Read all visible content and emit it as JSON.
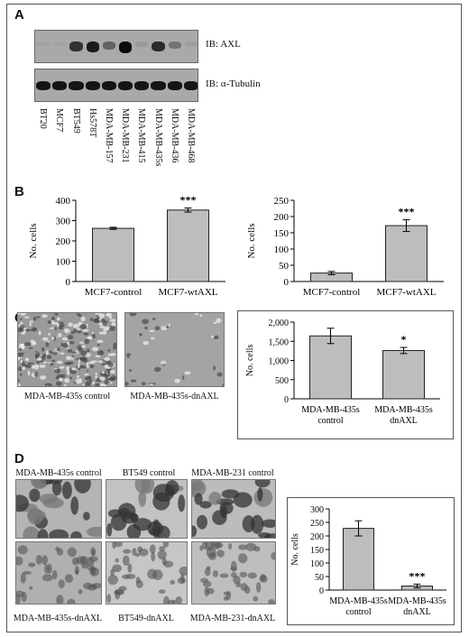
{
  "panels": {
    "a": "A",
    "b": "B",
    "c": "C",
    "d": "D"
  },
  "blot": {
    "ib_axl": "IB: AXL",
    "ib_tubulin": "IB: α-Tubulin",
    "lanes": [
      "BT20",
      "MCF7",
      "BT549",
      "Hs578T",
      "MDA-MB-157",
      "MDA-MB-231",
      "MDA-MB-415",
      "MDA-MB-435s",
      "MDA-MB-436",
      "MDA-MB-468"
    ],
    "axl_intensity": [
      0.05,
      0.05,
      0.75,
      0.9,
      0.45,
      1.0,
      0.1,
      0.8,
      0.35,
      0.08
    ]
  },
  "panel_c_captions": {
    "left": "MDA-MB-435s control",
    "right": "MDA-MB-435s-dnAXL"
  },
  "panel_d_captions": {
    "top": [
      "MDA-MB-435s control",
      "BT549 control",
      "MDA-MB-231 control"
    ],
    "bottom": [
      "MDA-MB-435s-dnAXL",
      "BT549-dnAXL",
      "MDA-MB-231-dnAXL"
    ]
  },
  "chart_data": [
    {
      "id": "b-left",
      "type": "bar",
      "categories": [
        "MCF7-control",
        "MCF7-wtAXL"
      ],
      "values": [
        262,
        352
      ],
      "errors": [
        5,
        10
      ],
      "ylabel": "No. cells",
      "ylim": [
        0,
        400
      ],
      "yticks": [
        "0",
        "100",
        "200",
        "300",
        "400"
      ],
      "annotations": [
        "",
        "***"
      ],
      "bar_color": "#bdbdbd"
    },
    {
      "id": "b-right",
      "type": "bar",
      "categories": [
        "MCF7-control",
        "MCF7-wtAXL"
      ],
      "values": [
        26,
        172
      ],
      "errors": [
        5,
        18
      ],
      "ylabel": "No. cells",
      "ylim": [
        0,
        250
      ],
      "yticks": [
        "0",
        "50",
        "100",
        "150",
        "200",
        "250"
      ],
      "annotations": [
        "",
        "***"
      ],
      "bar_color": "#bdbdbd"
    },
    {
      "id": "c",
      "type": "bar",
      "categories": [
        [
          "MDA-MB-435s",
          "control"
        ],
        [
          "MDA-MB-435s",
          "dnAXL"
        ]
      ],
      "values": [
        1640,
        1260
      ],
      "errors": [
        200,
        80
      ],
      "ylabel": "No. cells",
      "ylim": [
        0,
        2000
      ],
      "yticks": [
        "0",
        "500",
        "1,000",
        "1,500",
        "2,000"
      ],
      "annotations": [
        "",
        "*"
      ],
      "bar_color": "#bdbdbd"
    },
    {
      "id": "d",
      "type": "bar",
      "categories": [
        [
          "MDA-MB-435s",
          "control"
        ],
        [
          "MDA-MB-435s",
          "dnAXL"
        ]
      ],
      "values": [
        228,
        15
      ],
      "errors": [
        28,
        7
      ],
      "ylabel": "No. cells",
      "ylim": [
        0,
        300
      ],
      "yticks": [
        "0",
        "50",
        "100",
        "150",
        "200",
        "250",
        "300"
      ],
      "annotations": [
        "",
        "***"
      ],
      "bar_color": "#bdbdbd"
    }
  ]
}
